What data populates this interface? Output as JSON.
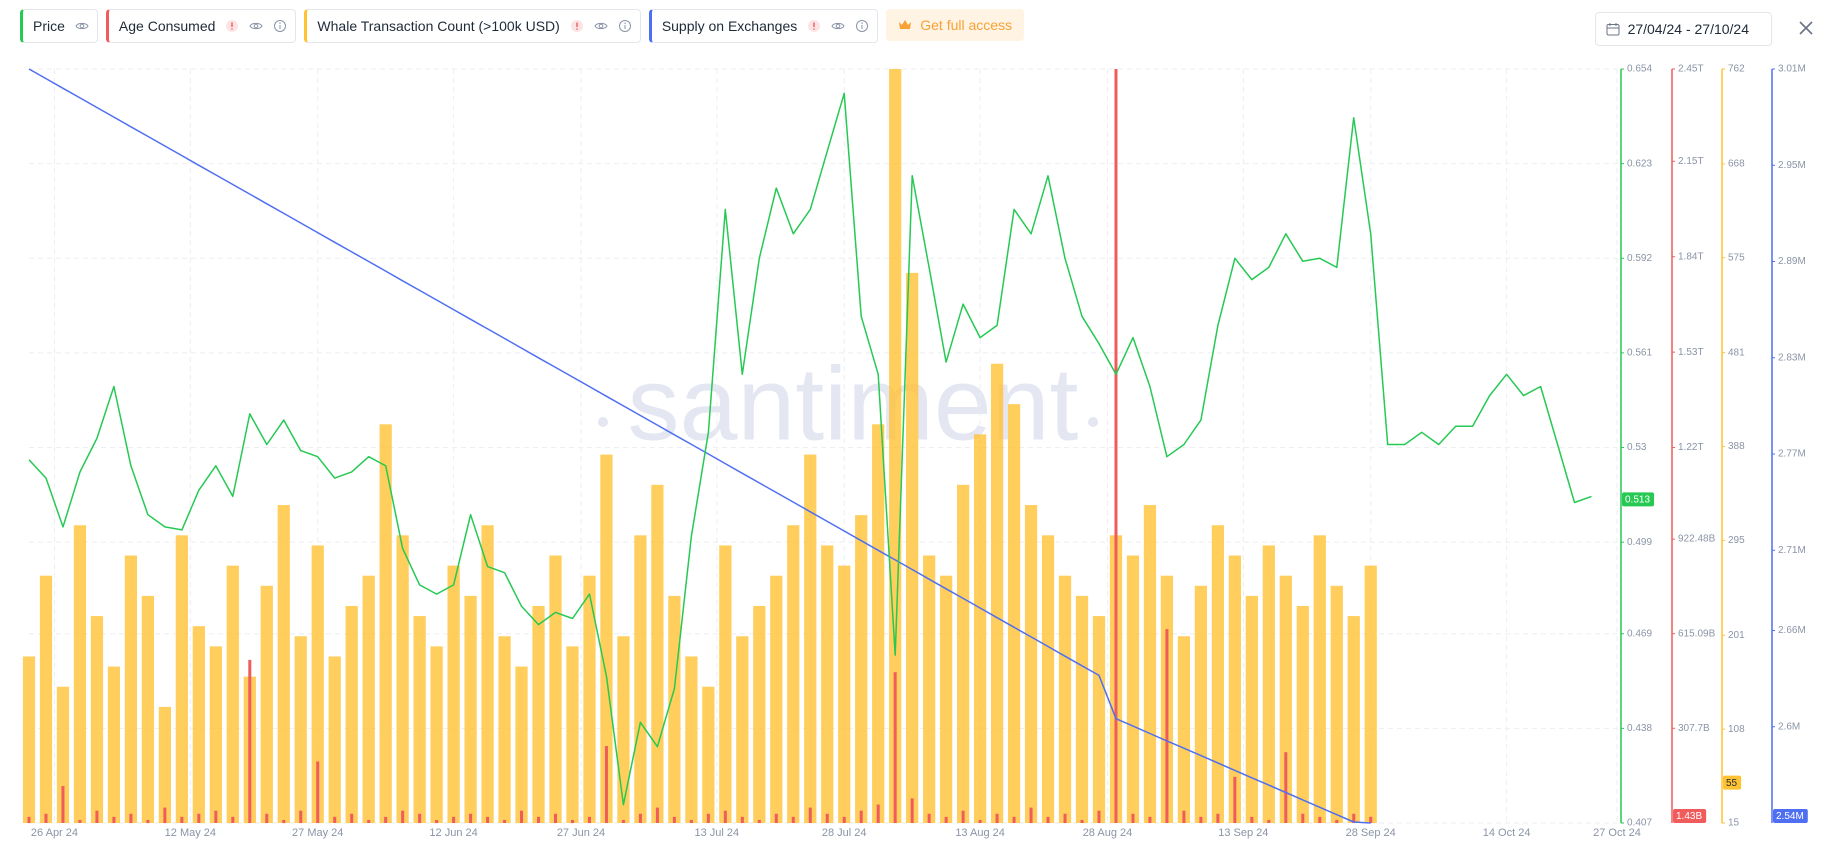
{
  "header": {
    "cta": "Get full access",
    "date_range": "27/04/24 - 27/10/24"
  },
  "chart_data": {
    "type": "combo",
    "watermark": "santiment",
    "grid": true,
    "x": [
      "2024-04-23",
      "2024-04-25",
      "2024-04-27",
      "2024-04-29",
      "2024-05-01",
      "2024-05-03",
      "2024-05-05",
      "2024-05-07",
      "2024-05-09",
      "2024-05-11",
      "2024-05-13",
      "2024-05-15",
      "2024-05-17",
      "2024-05-19",
      "2024-05-21",
      "2024-05-23",
      "2024-05-25",
      "2024-05-27",
      "2024-05-29",
      "2024-05-31",
      "2024-06-02",
      "2024-06-04",
      "2024-06-06",
      "2024-06-08",
      "2024-06-10",
      "2024-06-12",
      "2024-06-14",
      "2024-06-16",
      "2024-06-18",
      "2024-06-20",
      "2024-06-22",
      "2024-06-24",
      "2024-06-26",
      "2024-06-28",
      "2024-06-30",
      "2024-07-02",
      "2024-07-04",
      "2024-07-06",
      "2024-07-08",
      "2024-07-10",
      "2024-07-12",
      "2024-07-14",
      "2024-07-16",
      "2024-07-18",
      "2024-07-20",
      "2024-07-22",
      "2024-07-24",
      "2024-07-26",
      "2024-07-28",
      "2024-07-30",
      "2024-08-01",
      "2024-08-03",
      "2024-08-05",
      "2024-08-07",
      "2024-08-09",
      "2024-08-11",
      "2024-08-13",
      "2024-08-15",
      "2024-08-17",
      "2024-08-19",
      "2024-08-21",
      "2024-08-23",
      "2024-08-25",
      "2024-08-27",
      "2024-08-29",
      "2024-08-31",
      "2024-09-02",
      "2024-09-04",
      "2024-09-06",
      "2024-09-08",
      "2024-09-10",
      "2024-09-12",
      "2024-09-14",
      "2024-09-16",
      "2024-09-18",
      "2024-09-20",
      "2024-09-22",
      "2024-09-24",
      "2024-09-26",
      "2024-09-28",
      "2024-09-30",
      "2024-10-02",
      "2024-10-04",
      "2024-10-06",
      "2024-10-08",
      "2024-10-10",
      "2024-10-12",
      "2024-10-14",
      "2024-10-16",
      "2024-10-18",
      "2024-10-20",
      "2024-10-22",
      "2024-10-24"
    ],
    "xlim": [
      "2024-04-23",
      "2024-10-27"
    ],
    "xticks": [
      {
        "value": "2024-04-26",
        "label": "26 Apr 24"
      },
      {
        "value": "2024-05-12",
        "label": "12 May 24"
      },
      {
        "value": "2024-05-27",
        "label": "27 May 24"
      },
      {
        "value": "2024-06-12",
        "label": "12 Jun 24"
      },
      {
        "value": "2024-06-27",
        "label": "27 Jun 24"
      },
      {
        "value": "2024-07-13",
        "label": "13 Jul 24"
      },
      {
        "value": "2024-07-28",
        "label": "28 Jul 24"
      },
      {
        "value": "2024-08-13",
        "label": "13 Aug 24"
      },
      {
        "value": "2024-08-28",
        "label": "28 Aug 24"
      },
      {
        "value": "2024-09-13",
        "label": "13 Sep 24"
      },
      {
        "value": "2024-09-28",
        "label": "28 Sep 24"
      },
      {
        "value": "2024-10-14",
        "label": "14 Oct 24"
      },
      {
        "value": "2024-10-27",
        "label": "27 Oct 24"
      }
    ],
    "ylim": [
      0.407,
      0.654
    ],
    "yticks": [
      0.407,
      0.438,
      0.469,
      0.499,
      0.53,
      0.561,
      0.592,
      0.623,
      0.654
    ],
    "y2lim": [
      0,
      2450000000000
    ],
    "y2ticks": [
      {
        "value": 307700000000,
        "label": "307.7B"
      },
      {
        "value": 615090000000,
        "label": "615.09B"
      },
      {
        "value": 922480000000,
        "label": "922.48B"
      },
      {
        "value": 1220000000000,
        "label": "1.22T"
      },
      {
        "value": 1530000000000,
        "label": "1.53T"
      },
      {
        "value": 1840000000000,
        "label": "1.84T"
      },
      {
        "value": 2150000000000,
        "label": "2.15T"
      },
      {
        "value": 2450000000000,
        "label": "2.45T"
      }
    ],
    "y3lim": [
      15,
      762
    ],
    "y3ticks": [
      15,
      108,
      201,
      295,
      388,
      481,
      575,
      668,
      762
    ],
    "y4lim": [
      2540000,
      3010000
    ],
    "y4ticks": [
      {
        "value": 2600000,
        "label": "2.6M"
      },
      {
        "value": 2660000,
        "label": "2.66M"
      },
      {
        "value": 2710000,
        "label": "2.71M"
      },
      {
        "value": 2770000,
        "label": "2.77M"
      },
      {
        "value": 2830000,
        "label": "2.83M"
      },
      {
        "value": 2890000,
        "label": "2.89M"
      },
      {
        "value": 2950000,
        "label": "2.95M"
      },
      {
        "value": 3010000,
        "label": "3.01M"
      }
    ],
    "series": [
      {
        "name": "Price",
        "type": "line",
        "axis": "y",
        "color": "#26c953",
        "current": 0.513,
        "values": [
          0.526,
          0.52,
          0.504,
          0.522,
          0.533,
          0.55,
          0.524,
          0.508,
          0.504,
          0.503,
          0.516,
          0.524,
          0.514,
          0.541,
          0.531,
          0.539,
          0.529,
          0.527,
          0.52,
          0.522,
          0.527,
          0.524,
          0.497,
          0.485,
          0.482,
          0.485,
          0.508,
          0.491,
          0.489,
          0.478,
          0.472,
          0.476,
          0.474,
          0.482,
          0.455,
          0.413,
          0.44,
          0.432,
          0.451,
          0.501,
          0.535,
          0.608,
          0.554,
          0.592,
          0.615,
          0.6,
          0.608,
          0.627,
          0.646,
          0.573,
          0.554,
          0.462,
          0.619,
          0.589,
          0.558,
          0.577,
          0.566,
          0.57,
          0.608,
          0.6,
          0.619,
          0.592,
          0.573,
          0.564,
          0.554,
          0.566,
          0.55,
          0.527,
          0.531,
          0.539,
          0.57,
          0.592,
          0.585,
          0.589,
          0.6,
          0.591,
          0.592,
          0.589,
          0.638,
          0.6,
          0.531,
          0.531,
          0.535,
          0.531,
          0.537,
          0.537,
          0.547,
          0.554,
          0.547,
          0.55,
          0.531,
          0.512,
          0.514
        ]
      },
      {
        "name": "Age Consumed",
        "type": "bar",
        "axis": "y2",
        "color": "#f05b5b",
        "current": {
          "value": 1430000000,
          "label": "1.43B"
        },
        "values": [
          20000000000.0,
          30000000000.0,
          120000000000.0,
          10000000000.0,
          40000000000.0,
          20000000000.0,
          30000000000.0,
          10000000000.0,
          50000000000.0,
          20000000000.0,
          30000000000.0,
          40000000000.0,
          20000000000.0,
          530000000000.0,
          30000000000.0,
          10000000000.0,
          40000000000.0,
          200000000000.0,
          20000000000.0,
          30000000000.0,
          10000000000.0,
          20000000000.0,
          40000000000.0,
          30000000000.0,
          10000000000.0,
          20000000000.0,
          30000000000.0,
          20000000000.0,
          10000000000.0,
          40000000000.0,
          20000000000.0,
          30000000000.0,
          10000000000.0,
          20000000000.0,
          250000000000.0,
          10000000000.0,
          30000000000.0,
          50000000000.0,
          20000000000.0,
          10000000000.0,
          30000000000.0,
          40000000000.0,
          20000000000.0,
          10000000000.0,
          30000000000.0,
          20000000000.0,
          50000000000.0,
          30000000000.0,
          20000000000.0,
          40000000000.0,
          60000000000.0,
          490000000000.0,
          80000000000.0,
          30000000000.0,
          20000000000.0,
          40000000000.0,
          10000000000.0,
          30000000000.0,
          20000000000.0,
          50000000000.0,
          20000000000.0,
          30000000000.0,
          10000000000.0,
          40000000000.0,
          2450000000000.0,
          30000000000.0,
          20000000000.0,
          630000000000.0,
          40000000000.0,
          20000000000.0,
          30000000000.0,
          150000000000.0,
          20000000000.0,
          10000000000.0,
          230000000000.0,
          30000000000.0,
          20000000000.0,
          10000000000.0,
          30000000000.0,
          20000000000.0,
          null,
          null,
          null,
          null,
          null,
          null,
          null,
          null,
          null,
          null,
          null,
          null,
          null
        ]
      },
      {
        "name": "Whale Transaction Count (>100k USD)",
        "type": "bar",
        "axis": "y3",
        "color": "#ffc233",
        "current": 55,
        "values": [
          180,
          260,
          150,
          310,
          220,
          170,
          280,
          240,
          130,
          300,
          210,
          190,
          270,
          160,
          250,
          330,
          200,
          290,
          180,
          230,
          260,
          410,
          300,
          220,
          190,
          270,
          240,
          310,
          200,
          170,
          230,
          280,
          190,
          260,
          380,
          200,
          300,
          350,
          240,
          180,
          150,
          290,
          200,
          230,
          260,
          310,
          380,
          290,
          270,
          320,
          410,
          762,
          560,
          280,
          260,
          350,
          400,
          470,
          430,
          330,
          300,
          260,
          240,
          220,
          300,
          280,
          330,
          260,
          200,
          250,
          310,
          280,
          240,
          290,
          260,
          230,
          300,
          250,
          220,
          270,
          null,
          null,
          null,
          null,
          null,
          null,
          null,
          null,
          null,
          null,
          null,
          null,
          null
        ]
      },
      {
        "name": "Supply on Exchanges",
        "type": "line",
        "axis": "y4",
        "color": "#4f6ff2",
        "current": {
          "value": 2540000,
          "label": "2.54M"
        },
        "values": [
          3010000,
          3004000,
          2998000,
          2992000,
          2986000,
          2980000,
          2974000,
          2968000,
          2962000,
          2956000,
          2950000,
          2944000,
          2938000,
          2932000,
          2926000,
          2920000,
          2914000,
          2908000,
          2902000,
          2896000,
          2890000,
          2884000,
          2878000,
          2872000,
          2866000,
          2860000,
          2854000,
          2848000,
          2842000,
          2836000,
          2830000,
          2824000,
          2818000,
          2812000,
          2806000,
          2800000,
          2794000,
          2788000,
          2782000,
          2776000,
          2770000,
          2764000,
          2758000,
          2752000,
          2746000,
          2740000,
          2734000,
          2728000,
          2722000,
          2716000,
          2710000,
          2704000,
          2698000,
          2692000,
          2686000,
          2680000,
          2674000,
          2668000,
          2662000,
          2656000,
          2650000,
          2644000,
          2638000,
          2632000,
          2605000,
          2600400,
          2595800,
          2591200,
          2586600,
          2582000,
          2577400,
          2572800,
          2568200,
          2563600,
          2559000,
          2554400,
          2549800,
          2545200,
          2540600,
          2540000,
          null,
          null,
          null,
          null,
          null,
          null,
          null,
          null,
          null,
          null,
          null,
          null,
          null
        ]
      }
    ]
  }
}
